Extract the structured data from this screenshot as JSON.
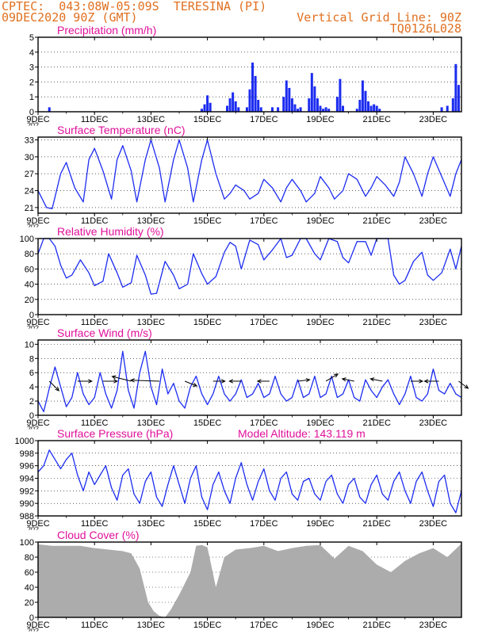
{
  "header": {
    "line1": "CPTEC:  043:08W-05:09S  TERESINA (PI)",
    "line2": "09DEC2020 90Z (GMT)",
    "grid_line": "Vertical Grid Line: 90Z",
    "code": "TQ0126L028",
    "model_altitude": "Model Altitude: 143.119 m"
  },
  "colors": {
    "header": "#e07020",
    "title": "#e0109a",
    "series": "#1c2cf0",
    "cloud": "#acacac",
    "axis": "#000000"
  },
  "x_axis": {
    "ticks": [
      "9DEC",
      "11DEC",
      "13DEC",
      "15DEC",
      "17DEC",
      "19DEC",
      "21DEC",
      "23DEC"
    ],
    "tick_days": [
      9,
      11,
      13,
      15,
      17,
      19,
      21,
      23
    ],
    "range_days": [
      9,
      24
    ],
    "year_stub": "202"
  },
  "chart_data": [
    {
      "id": "precip",
      "type": "bar",
      "title": "Precipitation (mm/h)",
      "ylim": [
        0,
        5
      ],
      "yticks": [
        "0",
        "1",
        "2",
        "3",
        "4",
        "5"
      ],
      "x": [
        9.4,
        14.8,
        14.9,
        15.0,
        15.1,
        15.7,
        15.8,
        15.9,
        16.0,
        16.1,
        16.4,
        16.5,
        16.6,
        16.7,
        16.8,
        16.9,
        17.3,
        17.5,
        17.7,
        17.8,
        17.9,
        18.0,
        18.1,
        18.2,
        18.3,
        18.6,
        18.7,
        18.8,
        18.9,
        19.0,
        19.1,
        19.2,
        19.3,
        19.6,
        19.7,
        19.8,
        20.3,
        20.4,
        20.5,
        20.6,
        20.7,
        20.8,
        20.9,
        21.0,
        21.1,
        23.3,
        23.5,
        23.7,
        23.8,
        23.9
      ],
      "values": [
        0.3,
        0.2,
        0.5,
        1.1,
        0.6,
        0.4,
        0.9,
        1.3,
        0.7,
        0.3,
        0.3,
        1.5,
        3.3,
        2.4,
        0.8,
        0.3,
        0.3,
        0.3,
        1.0,
        2.1,
        1.6,
        0.9,
        0.5,
        0.2,
        0.3,
        0.9,
        2.6,
        1.7,
        0.9,
        0.4,
        0.2,
        0.3,
        0.2,
        1.0,
        2.2,
        0.4,
        0.2,
        0.8,
        2.1,
        1.4,
        0.7,
        0.4,
        0.5,
        0.4,
        0.2,
        0.3,
        0.4,
        0.9,
        3.2,
        1.8
      ]
    },
    {
      "id": "temp",
      "type": "line",
      "title": "Surface Temperature (nC)",
      "ylim": [
        20,
        33.5
      ],
      "yticks": [
        "21",
        "24",
        "27",
        "30",
        "33"
      ],
      "ytick_values": [
        21,
        24,
        27,
        30,
        33
      ],
      "x": [
        9.0,
        9.3,
        9.5,
        9.8,
        10.0,
        10.3,
        10.6,
        10.8,
        11.0,
        11.3,
        11.6,
        11.8,
        12.0,
        12.3,
        12.5,
        12.8,
        13.0,
        13.3,
        13.5,
        13.8,
        14.0,
        14.3,
        14.5,
        14.8,
        15.0,
        15.3,
        15.6,
        15.8,
        16.0,
        16.3,
        16.5,
        16.8,
        17.0,
        17.3,
        17.6,
        17.8,
        18.0,
        18.3,
        18.5,
        18.8,
        19.0,
        19.3,
        19.5,
        19.8,
        20.0,
        20.3,
        20.6,
        20.8,
        21.0,
        21.3,
        21.6,
        21.8,
        22.0,
        22.3,
        22.6,
        22.8,
        23.0,
        23.3,
        23.6,
        23.8,
        24.0
      ],
      "values": [
        24.0,
        21.0,
        20.8,
        27.0,
        29.0,
        24.5,
        22.0,
        29.5,
        31.5,
        27.5,
        22.5,
        29.5,
        32.0,
        27.5,
        22.0,
        29.5,
        33.0,
        28.0,
        22.0,
        29.5,
        33.0,
        28.0,
        22.0,
        29.5,
        33.0,
        27.0,
        22.5,
        23.5,
        25.0,
        24.0,
        22.5,
        23.5,
        26.0,
        24.5,
        22.0,
        24.5,
        26.0,
        24.0,
        22.0,
        23.5,
        26.5,
        24.5,
        22.5,
        24.0,
        27.0,
        26.0,
        23.0,
        24.5,
        26.5,
        25.0,
        23.0,
        25.5,
        30.0,
        27.0,
        23.0,
        27.0,
        30.0,
        26.5,
        23.0,
        27.0,
        29.5
      ]
    },
    {
      "id": "rh",
      "type": "line",
      "title": "Relative Humidity (%)",
      "ylim": [
        0,
        100
      ],
      "yticks": [
        "0",
        "20",
        "40",
        "60",
        "80",
        "100"
      ],
      "ytick_values": [
        0,
        20,
        40,
        60,
        80,
        100
      ],
      "x": [
        9.0,
        9.2,
        9.4,
        9.6,
        9.8,
        10.0,
        10.2,
        10.5,
        10.8,
        11.0,
        11.3,
        11.5,
        11.8,
        12.0,
        12.3,
        12.5,
        12.8,
        13.0,
        13.2,
        13.5,
        13.8,
        14.0,
        14.3,
        14.5,
        14.8,
        15.0,
        15.3,
        15.6,
        15.8,
        16.0,
        16.2,
        16.5,
        16.8,
        17.0,
        17.3,
        17.6,
        17.8,
        18.0,
        18.3,
        18.5,
        18.8,
        19.0,
        19.3,
        19.6,
        19.8,
        20.0,
        20.3,
        20.6,
        20.8,
        21.0,
        21.2,
        21.4,
        21.6,
        21.8,
        22.0,
        22.3,
        22.6,
        22.8,
        23.0,
        23.3,
        23.6,
        23.8,
        24.0
      ],
      "values": [
        80,
        100,
        100,
        90,
        65,
        48,
        52,
        72,
        55,
        38,
        44,
        80,
        55,
        36,
        42,
        78,
        52,
        27,
        28,
        70,
        52,
        34,
        40,
        80,
        54,
        40,
        50,
        82,
        95,
        90,
        60,
        98,
        92,
        72,
        85,
        100,
        75,
        78,
        100,
        100,
        80,
        72,
        100,
        96,
        75,
        68,
        96,
        96,
        78,
        100,
        100,
        100,
        52,
        40,
        45,
        70,
        82,
        52,
        45,
        55,
        86,
        60,
        90
      ]
    },
    {
      "id": "wind",
      "type": "line",
      "title": "Surface Wind (m/s)",
      "ylim": [
        0,
        10.6
      ],
      "yticks": [
        "0",
        "2",
        "4",
        "6",
        "8",
        "10"
      ],
      "ytick_values": [
        0,
        2,
        4,
        6,
        8,
        10
      ],
      "x": [
        9.0,
        9.2,
        9.4,
        9.6,
        9.8,
        10.0,
        10.2,
        10.4,
        10.6,
        10.8,
        11.0,
        11.2,
        11.4,
        11.6,
        11.8,
        12.0,
        12.2,
        12.4,
        12.6,
        12.8,
        13.0,
        13.2,
        13.4,
        13.6,
        13.8,
        14.0,
        14.2,
        14.4,
        14.6,
        14.8,
        15.0,
        15.2,
        15.4,
        15.6,
        15.8,
        16.0,
        16.2,
        16.4,
        16.6,
        16.8,
        17.0,
        17.2,
        17.4,
        17.6,
        17.8,
        18.0,
        18.2,
        18.4,
        18.6,
        18.8,
        19.0,
        19.2,
        19.4,
        19.6,
        19.8,
        20.0,
        20.2,
        20.4,
        20.6,
        20.8,
        21.0,
        21.2,
        21.4,
        21.6,
        21.8,
        22.0,
        22.2,
        22.4,
        22.6,
        22.8,
        23.0,
        23.2,
        23.4,
        23.6,
        23.8,
        24.0
      ],
      "values": [
        2.0,
        0.5,
        3.8,
        6.8,
        4.0,
        1.2,
        2.5,
        6.0,
        3.0,
        1.5,
        2.5,
        6.0,
        3.0,
        1.0,
        3.5,
        9.0,
        3.5,
        1.0,
        6.0,
        9.0,
        4.0,
        1.5,
        6.5,
        3.0,
        4.5,
        2.0,
        1.0,
        4.0,
        5.5,
        3.0,
        1.5,
        3.0,
        5.5,
        3.0,
        2.0,
        3.0,
        5.0,
        2.5,
        3.0,
        4.5,
        2.5,
        3.0,
        5.5,
        3.0,
        2.0,
        2.5,
        5.0,
        2.5,
        3.0,
        5.5,
        2.5,
        3.0,
        5.5,
        2.5,
        3.0,
        5.0,
        2.5,
        2.0,
        5.0,
        3.5,
        2.5,
        4.0,
        5.0,
        3.0,
        1.5,
        3.0,
        5.5,
        2.5,
        2.0,
        3.0,
        6.5,
        3.5,
        3.0,
        4.5,
        3.0,
        2.5
      ],
      "arrows": {
        "x": [
          9.4,
          10.4,
          11.3,
          12.3,
          13.3,
          14.2,
          15.2,
          16.2,
          17.2,
          18.2,
          19.2,
          20.2,
          21.2,
          22.2,
          23.2,
          23.9
        ],
        "u": [
          2.0,
          3.0,
          3.0,
          -4.0,
          -6.0,
          2.5,
          2.5,
          -2.5,
          -2.5,
          2.5,
          2.5,
          -2.5,
          -2.5,
          2.5,
          -3.0,
          2.0
        ],
        "v": [
          -2.0,
          0,
          0,
          1.0,
          0.2,
          -1.0,
          0,
          0,
          0,
          0.3,
          1.5,
          0.5,
          0.5,
          0,
          0,
          -1.5
        ]
      }
    },
    {
      "id": "pressure",
      "type": "line",
      "title": "Surface Pressure (hPa)",
      "ylim": [
        988,
        1000
      ],
      "yticks": [
        "988",
        "990",
        "992",
        "994",
        "996",
        "998",
        "1000"
      ],
      "ytick_values": [
        988,
        990,
        992,
        994,
        996,
        998,
        1000
      ],
      "x": [
        9.0,
        9.2,
        9.4,
        9.6,
        9.8,
        10.0,
        10.2,
        10.4,
        10.6,
        10.8,
        11.0,
        11.2,
        11.4,
        11.6,
        11.8,
        12.0,
        12.2,
        12.4,
        12.6,
        12.8,
        13.0,
        13.2,
        13.4,
        13.6,
        13.8,
        14.0,
        14.2,
        14.4,
        14.6,
        14.8,
        15.0,
        15.2,
        15.4,
        15.6,
        15.8,
        16.0,
        16.2,
        16.4,
        16.6,
        16.8,
        17.0,
        17.2,
        17.4,
        17.6,
        17.8,
        18.0,
        18.2,
        18.4,
        18.6,
        18.8,
        19.0,
        19.2,
        19.4,
        19.6,
        19.8,
        20.0,
        20.2,
        20.4,
        20.6,
        20.8,
        21.0,
        21.2,
        21.4,
        21.6,
        21.8,
        22.0,
        22.2,
        22.4,
        22.6,
        22.8,
        23.0,
        23.2,
        23.4,
        23.6,
        23.8,
        24.0
      ],
      "values": [
        995,
        996,
        998.5,
        997,
        995.5,
        997,
        998,
        994.5,
        992,
        995,
        993,
        994.5,
        996,
        992.5,
        990.5,
        994.5,
        995.5,
        991.5,
        990,
        993.5,
        995,
        991,
        989.5,
        993,
        996,
        993,
        990,
        994,
        996,
        991,
        989,
        993,
        995,
        992,
        990,
        994,
        996.5,
        993,
        990.5,
        993.5,
        995.5,
        992,
        990.5,
        994,
        995,
        991.5,
        990.5,
        993.5,
        994,
        991.5,
        990.5,
        993.5,
        994.5,
        991.5,
        990,
        993,
        994,
        991,
        990,
        993,
        994.5,
        991.5,
        990.5,
        993.5,
        995,
        992,
        990,
        993.5,
        995,
        992,
        989.5,
        993.5,
        994.5,
        990,
        988.5,
        992
      ]
    },
    {
      "id": "cloud",
      "type": "area",
      "title": "Cloud Cover (%)",
      "ylim": [
        0,
        100
      ],
      "yticks": [
        "0",
        "20",
        "40",
        "60",
        "80",
        "100"
      ],
      "ytick_values": [
        0,
        20,
        40,
        60,
        80,
        100
      ],
      "x": [
        9.0,
        9.5,
        10.0,
        10.5,
        11.0,
        11.5,
        12.0,
        12.3,
        12.6,
        12.9,
        13.1,
        13.3,
        13.5,
        13.7,
        14.0,
        14.2,
        14.4,
        14.6,
        14.8,
        15.0,
        15.3,
        15.6,
        16.0,
        16.5,
        17.0,
        17.5,
        18.0,
        18.5,
        19.0,
        19.5,
        20.0,
        20.5,
        21.0,
        21.5,
        22.0,
        22.5,
        23.0,
        23.5,
        24.0
      ],
      "values": [
        97,
        95,
        95,
        95,
        92,
        90,
        88,
        85,
        65,
        20,
        8,
        2,
        0,
        10,
        30,
        45,
        60,
        95,
        96,
        93,
        40,
        80,
        90,
        92,
        95,
        88,
        92,
        95,
        96,
        78,
        95,
        88,
        70,
        60,
        75,
        85,
        92,
        80,
        98
      ]
    }
  ]
}
